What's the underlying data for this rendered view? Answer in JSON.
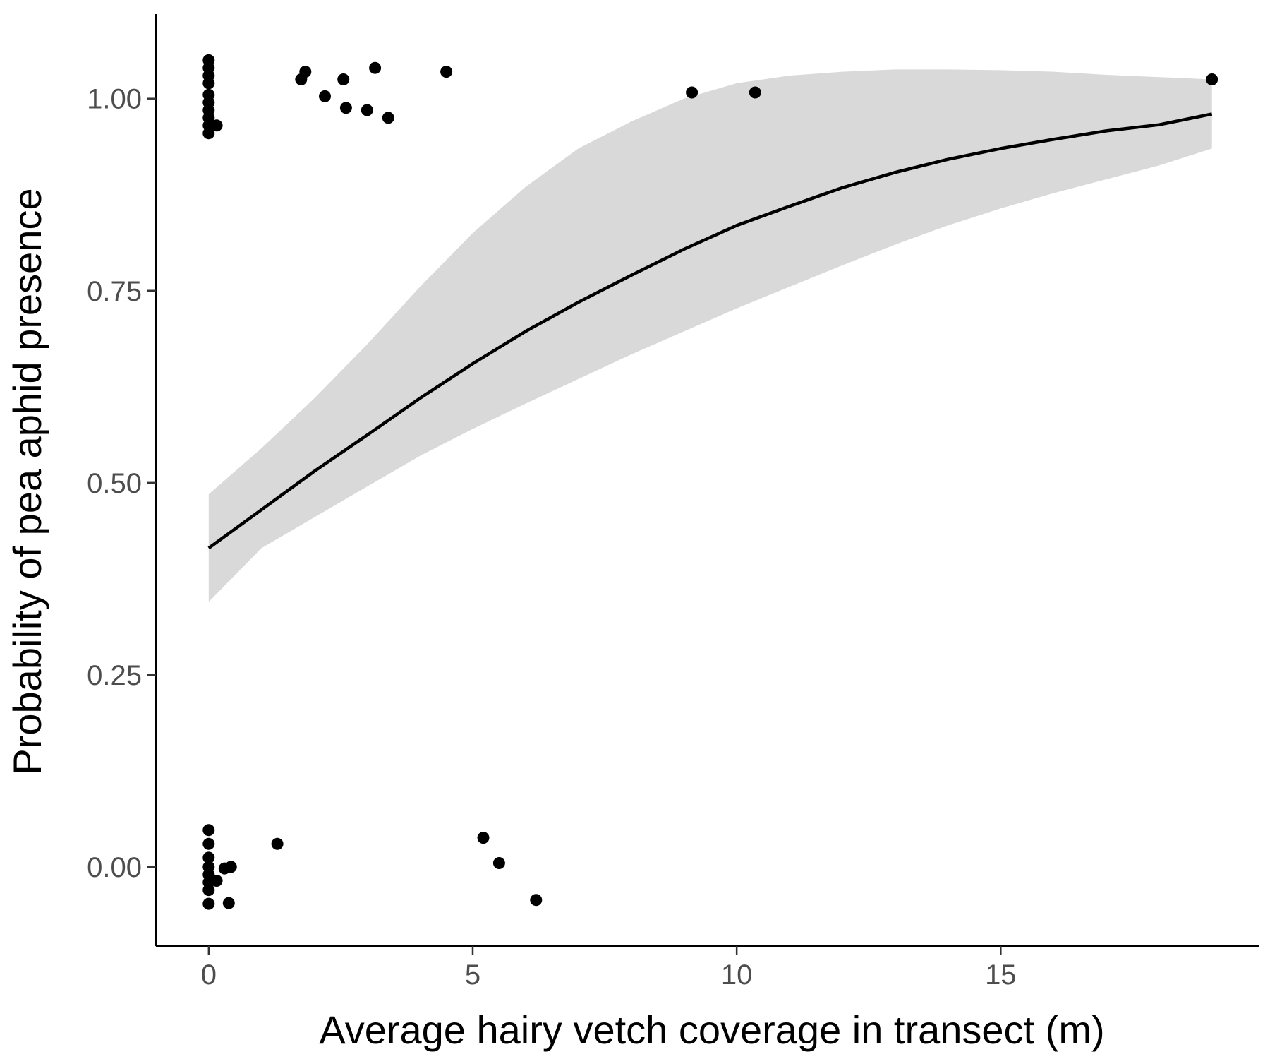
{
  "chart_data": {
    "type": "scatter",
    "title": "",
    "xlabel": "Average hairy vetch coverage in transect (m)",
    "ylabel": "Probability of pea aphid presence",
    "xlim": [
      -1,
      19.9
    ],
    "ylim": [
      -0.103,
      1.11
    ],
    "grid": false,
    "x_ticks": [
      0,
      5,
      10,
      15
    ],
    "y_ticks": [
      0,
      0.25,
      0.5,
      0.75,
      1
    ],
    "x_tick_labels": [
      "0",
      "5",
      "10",
      "15"
    ],
    "y_tick_labels": [
      "0.00",
      "0.25",
      "0.50",
      "0.75",
      "1.00"
    ],
    "fit_line": {
      "x": [
        0,
        1,
        2,
        3,
        4,
        5,
        6,
        7,
        8,
        9,
        10,
        11,
        12,
        13,
        14,
        15,
        16,
        17,
        18,
        19
      ],
      "y": [
        0.415,
        0.465,
        0.515,
        0.562,
        0.61,
        0.655,
        0.697,
        0.735,
        0.77,
        0.804,
        0.835,
        0.86,
        0.884,
        0.904,
        0.921,
        0.935,
        0.947,
        0.958,
        0.966,
        0.98
      ]
    },
    "confidence_band": {
      "x": [
        0,
        1,
        2,
        3,
        4,
        5,
        6,
        7,
        8,
        9,
        10,
        11,
        12,
        13,
        14,
        15,
        16,
        17,
        18,
        19
      ],
      "lower": [
        0.345,
        0.415,
        0.455,
        0.495,
        0.535,
        0.57,
        0.603,
        0.635,
        0.667,
        0.697,
        0.727,
        0.755,
        0.783,
        0.81,
        0.835,
        0.857,
        0.877,
        0.895,
        0.913,
        0.935
      ],
      "upper": [
        0.485,
        0.545,
        0.61,
        0.68,
        0.755,
        0.825,
        0.885,
        0.935,
        0.97,
        1.0,
        1.02,
        1.03,
        1.035,
        1.038,
        1.038,
        1.037,
        1.035,
        1.031,
        1.028,
        1.025
      ]
    },
    "series": [
      {
        "name": "observations",
        "points": [
          [
            0,
            1.05
          ],
          [
            0,
            1.04
          ],
          [
            0,
            1.03
          ],
          [
            0,
            1.02
          ],
          [
            0,
            1.005
          ],
          [
            0,
            0.995
          ],
          [
            0,
            0.985
          ],
          [
            0,
            0.975
          ],
          [
            0,
            0.965
          ],
          [
            0,
            0.955
          ],
          [
            0.15,
            0.965
          ],
          [
            1.75,
            1.025
          ],
          [
            1.83,
            1.035
          ],
          [
            2.2,
            1.003
          ],
          [
            2.55,
            1.025
          ],
          [
            2.6,
            0.988
          ],
          [
            3.0,
            0.985
          ],
          [
            3.15,
            1.04
          ],
          [
            3.4,
            0.975
          ],
          [
            4.5,
            1.035
          ],
          [
            9.15,
            1.008
          ],
          [
            10.35,
            1.008
          ],
          [
            19.0,
            1.025
          ],
          [
            0,
            0.048
          ],
          [
            0,
            0.03
          ],
          [
            0,
            0.012
          ],
          [
            0,
            0.0
          ],
          [
            0,
            -0.01
          ],
          [
            0,
            -0.02
          ],
          [
            0,
            -0.03
          ],
          [
            0,
            -0.048
          ],
          [
            0.15,
            -0.018
          ],
          [
            0.3,
            -0.002
          ],
          [
            0.42,
            0.0
          ],
          [
            0.38,
            -0.047
          ],
          [
            1.3,
            0.03
          ],
          [
            5.2,
            0.038
          ],
          [
            5.5,
            0.005
          ],
          [
            6.2,
            -0.043
          ]
        ]
      }
    ]
  }
}
